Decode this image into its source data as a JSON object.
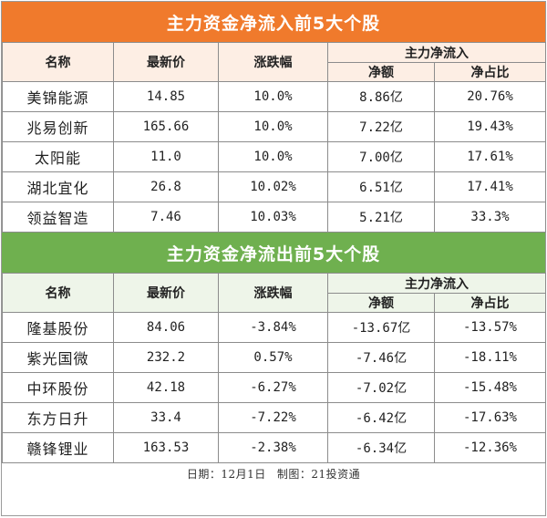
{
  "inflow": {
    "title": "主力资金净流入前5大个股",
    "headers": {
      "name": "名称",
      "price": "最新价",
      "change": "涨跌幅",
      "group": "主力净流入",
      "net": "净额",
      "ratio": "净占比"
    },
    "rows": [
      {
        "name": "美锦能源",
        "price": "14.85",
        "change": "10.0%",
        "net": "8.86亿",
        "ratio": "20.76%"
      },
      {
        "name": "兆易创新",
        "price": "165.66",
        "change": "10.0%",
        "net": "7.22亿",
        "ratio": "19.43%"
      },
      {
        "name": "太阳能",
        "price": "11.0",
        "change": "10.0%",
        "net": "7.00亿",
        "ratio": "17.61%"
      },
      {
        "name": "湖北宜化",
        "price": "26.8",
        "change": "10.02%",
        "net": "6.51亿",
        "ratio": "17.41%"
      },
      {
        "name": "领益智造",
        "price": "7.46",
        "change": "10.03%",
        "net": "5.21亿",
        "ratio": "33.3%"
      }
    ]
  },
  "outflow": {
    "title": "主力资金净流出前5大个股",
    "headers": {
      "name": "名称",
      "price": "最新价",
      "change": "涨跌幅",
      "group": "主力净流入",
      "net": "净额",
      "ratio": "净占比"
    },
    "rows": [
      {
        "name": "隆基股份",
        "price": "84.06",
        "change": "-3.84%",
        "net": "-13.67亿",
        "ratio": "-13.57%"
      },
      {
        "name": "紫光国微",
        "price": "232.2",
        "change": "0.57%",
        "net": "-7.46亿",
        "ratio": "-18.11%"
      },
      {
        "name": "中环股份",
        "price": "42.18",
        "change": "-6.27%",
        "net": "-7.02亿",
        "ratio": "-15.48%"
      },
      {
        "name": "东方日升",
        "price": "33.4",
        "change": "-7.22%",
        "net": "-6.42亿",
        "ratio": "-17.63%"
      },
      {
        "name": "赣锋锂业",
        "price": "163.53",
        "change": "-2.38%",
        "net": "-6.34亿",
        "ratio": "-12.36%"
      }
    ]
  },
  "footer": {
    "date": "日期：12月1日",
    "credit": "制图：21投资通"
  },
  "colors": {
    "inflow_banner": "#f07a2c",
    "outflow_banner": "#6fb04f",
    "inflow_header_bg": "#fdeee4",
    "outflow_header_bg": "#eef5e9"
  }
}
